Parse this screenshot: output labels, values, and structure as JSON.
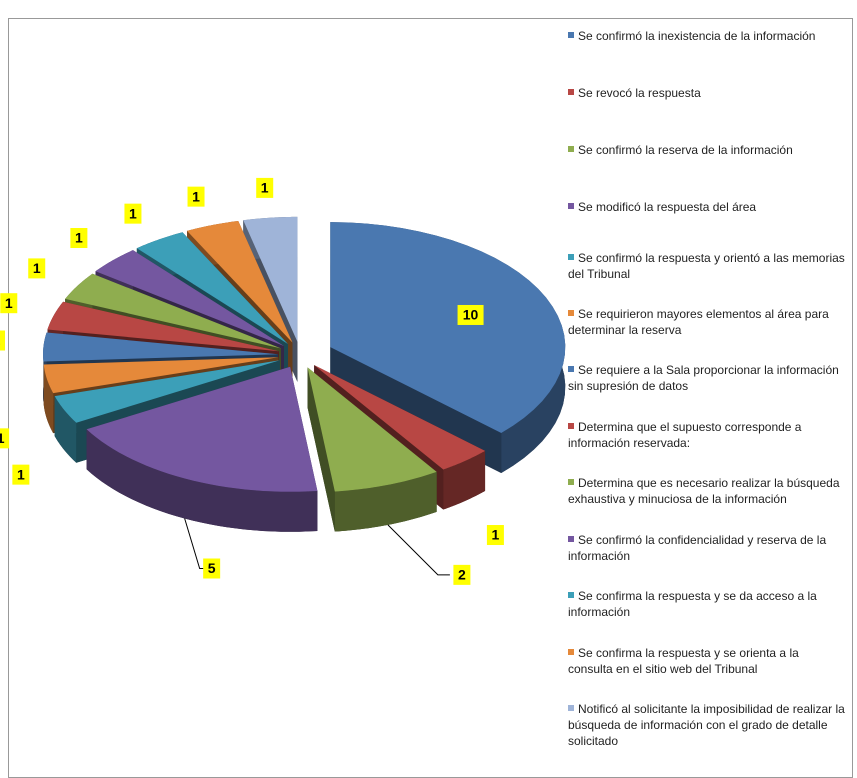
{
  "chart_data": {
    "type": "pie3d",
    "categories": [
      "Se confirmó la inexistencia de la información",
      "Se revocó la respuesta",
      "Se confirmó la reserva de la información",
      "Se modificó la respuesta del área",
      "Se confirmó la respuesta y orientó a las memorias del Tribunal",
      "Se requirieron mayores elementos al área para determinar la reserva",
      "Se requiere a la Sala proporcionar la información sin supresión de datos",
      "Determina que el supuesto corresponde a información reservada:",
      "Determina que es necesario realizar la búsqueda exhaustiva y minuciosa de la información",
      "Se confirmó la confidencialidad y reserva de la información",
      "Se confirma la respuesta y se da acceso a la información",
      "Se confirma la respuesta y se orienta a la consulta en el sitio web del Tribunal",
      "Notificó al solicitante la imposibilidad de realizar la búsqueda de información con el grado de detalle solicitado"
    ],
    "values": [
      10,
      1,
      2,
      5,
      1,
      1,
      1,
      1,
      1,
      1,
      1,
      1,
      1
    ],
    "colors": [
      "#4a78b0",
      "#b84744",
      "#8fad4f",
      "#7457a0",
      "#3c9fb8",
      "#e5893a",
      "#4a78b0",
      "#b84744",
      "#8fad4f",
      "#7457a0",
      "#3c9fb8",
      "#e5893a",
      "#9fb4d8"
    ],
    "legend": "right"
  }
}
